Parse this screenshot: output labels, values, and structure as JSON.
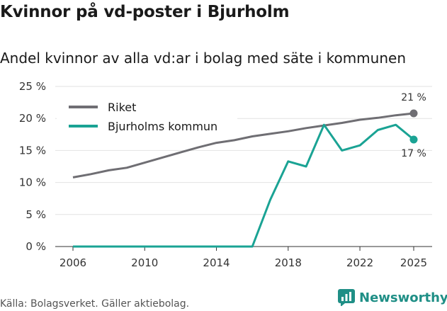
{
  "title": "Kvinnor på vd-poster i Bjurholm",
  "subtitle": "Andel kvinnor av alla vd:ar i bolag med säte i kommunen",
  "source": "Källa: Bolagsverket. Gäller aktiebolag.",
  "brand": "Newsworthy",
  "colors": {
    "riket": "#6f6e73",
    "kommun": "#1aa394",
    "brand": "#1f8f86"
  },
  "chart_data": {
    "type": "line",
    "x": [
      2006,
      2007,
      2008,
      2009,
      2010,
      2011,
      2012,
      2013,
      2014,
      2015,
      2016,
      2017,
      2018,
      2019,
      2020,
      2021,
      2022,
      2023,
      2024,
      2025
    ],
    "series": [
      {
        "name": "Riket",
        "color": "#6f6e73",
        "values": [
          10.8,
          11.3,
          11.9,
          12.3,
          13.1,
          13.9,
          14.7,
          15.5,
          16.2,
          16.6,
          17.2,
          17.6,
          18.0,
          18.5,
          18.9,
          19.3,
          19.8,
          20.1,
          20.5,
          20.8
        ]
      },
      {
        "name": "Bjurholms kommun",
        "color": "#1aa394",
        "values": [
          0,
          0,
          0,
          0,
          0,
          0,
          0,
          0,
          0,
          0,
          0,
          7.3,
          13.3,
          12.5,
          19.0,
          15.0,
          15.8,
          18.2,
          19.0,
          16.7
        ]
      }
    ],
    "end_labels": [
      "21 %",
      "17 %"
    ],
    "ylim": [
      0,
      25
    ],
    "yticks": [
      0,
      5,
      10,
      15,
      20,
      25
    ],
    "ytick_labels": [
      "0 %",
      "5 %",
      "10 %",
      "15 %",
      "20 %",
      "25 %"
    ],
    "xticks": [
      2006,
      2010,
      2014,
      2018,
      2022,
      2025
    ],
    "xtick_labels": [
      "2006",
      "2010",
      "2014",
      "2018",
      "2022",
      "2025"
    ],
    "grid": "horizontal",
    "legend": "top-left",
    "xlabel": "",
    "ylabel": ""
  }
}
